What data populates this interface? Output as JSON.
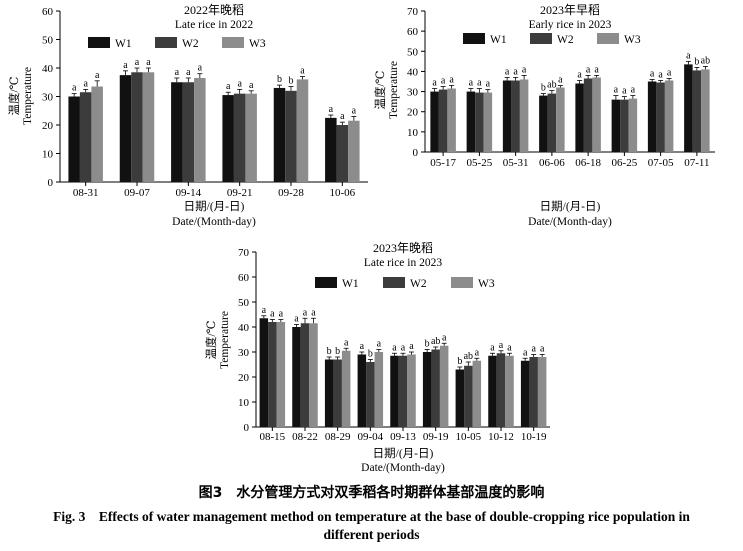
{
  "caption": {
    "cn": "图3　水分管理方式对双季稻各时期群体基部温度的影响",
    "en_line1": "Fig. 3　Effects of water management method on temperature at the base of double-cropping rice population in",
    "en_line2": "different periods"
  },
  "colors": {
    "W1": "#111111",
    "W2": "#3c3c3c",
    "W3": "#8c8c8c"
  },
  "chart_data": [
    {
      "type": "bar",
      "title": "2022年晚稻",
      "subtitle": "Late rice in 2022",
      "ylabel_cn": "温度/℃",
      "ylabel_en": "Temperature",
      "xlabel_cn": "日期/(月-日)",
      "xlabel_en": "Date/(Month-day)",
      "ylim": [
        0,
        60
      ],
      "yticks": [
        0,
        10,
        20,
        30,
        40,
        50,
        60
      ],
      "legend": "top",
      "categories": [
        "08-31",
        "09-07",
        "09-14",
        "09-21",
        "09-28",
        "10-06"
      ],
      "series": [
        {
          "name": "W1",
          "values": [
            30,
            37.5,
            35,
            30.5,
            33,
            22.5
          ],
          "errors": [
            1,
            1.5,
            1.5,
            1,
            1,
            1
          ],
          "letters": [
            "a",
            "a",
            "a",
            "a",
            "b",
            "a"
          ]
        },
        {
          "name": "W2",
          "values": [
            31.5,
            38.5,
            35,
            31,
            32,
            20
          ],
          "errors": [
            1,
            1.5,
            1.5,
            1.5,
            1.5,
            1
          ],
          "letters": [
            "a",
            "a",
            "a",
            "a",
            "b",
            "a"
          ]
        },
        {
          "name": "W3",
          "values": [
            33.5,
            38.5,
            36.5,
            31,
            36,
            21.5
          ],
          "errors": [
            2,
            1.5,
            1.5,
            1,
            1,
            1.5
          ],
          "letters": [
            "a",
            "a",
            "a",
            "a",
            "a",
            "a"
          ]
        }
      ]
    },
    {
      "type": "bar",
      "title": "2023年早稻",
      "subtitle": "Early rice in 2023",
      "ylabel_cn": "温度/℃",
      "ylabel_en": "Temperature",
      "xlabel_cn": "日期/(月-日)",
      "xlabel_en": "Date/(Month-day)",
      "ylim": [
        0,
        70
      ],
      "yticks": [
        0,
        10,
        20,
        30,
        40,
        50,
        60,
        70
      ],
      "legend": "top",
      "categories": [
        "05-17",
        "05-25",
        "05-31",
        "06-06",
        "06-18",
        "06-25",
        "07-05",
        "07-11"
      ],
      "series": [
        {
          "name": "W1",
          "values": [
            30,
            30,
            35.5,
            28,
            34,
            26,
            35,
            43.5
          ],
          "errors": [
            1.5,
            1.5,
            1.5,
            1,
            1.5,
            2,
            1,
            1.5
          ],
          "letters": [
            "a",
            "a",
            "a",
            "b",
            "a",
            "a",
            "a",
            "a"
          ]
        },
        {
          "name": "W2",
          "values": [
            31,
            29.5,
            35.5,
            29,
            36.5,
            26,
            34.5,
            40.5
          ],
          "errors": [
            1.5,
            2,
            1.5,
            1.5,
            1.5,
            1.5,
            1,
            1.5
          ],
          "letters": [
            "a",
            "a",
            "a",
            "ab",
            "a",
            "a",
            "a",
            "b"
          ]
        },
        {
          "name": "W3",
          "values": [
            31.5,
            29.5,
            36,
            32,
            37,
            26.5,
            35.5,
            41
          ],
          "errors": [
            1.5,
            1.5,
            2,
            1,
            1,
            1.5,
            1,
            1.5
          ],
          "letters": [
            "a",
            "a",
            "a",
            "a",
            "a",
            "a",
            "a",
            "ab"
          ]
        }
      ]
    },
    {
      "type": "bar",
      "title": "2023年晚稻",
      "subtitle": "Late rice in 2023",
      "ylabel_cn": "温度/℃",
      "ylabel_en": "Temperature",
      "xlabel_cn": "日期/(月-日)",
      "xlabel_en": "Date/(Month-day)",
      "ylim": [
        0,
        70
      ],
      "yticks": [
        0,
        10,
        20,
        30,
        40,
        50,
        60,
        70
      ],
      "legend": "top",
      "categories": [
        "08-15",
        "08-22",
        "08-29",
        "09-04",
        "09-13",
        "09-19",
        "10-05",
        "10-12",
        "10-19"
      ],
      "series": [
        {
          "name": "W1",
          "values": [
            43.5,
            40,
            27,
            29,
            28.5,
            30,
            23,
            28.5,
            26.5
          ],
          "errors": [
            1,
            1,
            1,
            1,
            1,
            1,
            1,
            1,
            1
          ],
          "letters": [
            "a",
            "a",
            "b",
            "a",
            "a",
            "b",
            "b",
            "a",
            "a"
          ]
        },
        {
          "name": "W2",
          "values": [
            42,
            41.5,
            27,
            26,
            28.5,
            31,
            24.5,
            29.5,
            28
          ],
          "errors": [
            1,
            2,
            1,
            1,
            1,
            1,
            1.5,
            1,
            1
          ],
          "letters": [
            "a",
            "a",
            "b",
            "b",
            "a",
            "ab",
            "ab",
            "a",
            "a"
          ]
        },
        {
          "name": "W3",
          "values": [
            42,
            41.5,
            30.5,
            30,
            29,
            32.5,
            26.5,
            28.5,
            28
          ],
          "errors": [
            1,
            2,
            1,
            1,
            1,
            1,
            1,
            1,
            1
          ],
          "letters": [
            "a",
            "a",
            "a",
            "a",
            "a",
            "a",
            "a",
            "a",
            "a"
          ]
        }
      ]
    }
  ]
}
